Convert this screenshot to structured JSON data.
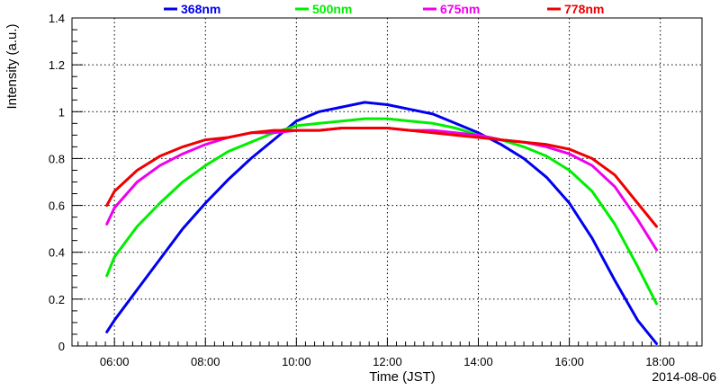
{
  "chart_data": {
    "type": "line",
    "xlabel": "Time (JST)",
    "ylabel": "Intensity (a.u.)",
    "date_label": "2014-08-06",
    "x_ticks": [
      "06:00",
      "08:00",
      "10:00",
      "12:00",
      "14:00",
      "16:00",
      "18:00"
    ],
    "y_ticks": [
      "0",
      "0.2",
      "0.4",
      "0.6",
      "0.8",
      "1",
      "1.2",
      "1.4"
    ],
    "xlim": [
      "05:04",
      "18:55"
    ],
    "ylim": [
      0,
      1.4
    ],
    "grid": true,
    "legend_position": "top",
    "x": [
      "05:50",
      "06:00",
      "06:30",
      "07:00",
      "07:30",
      "08:00",
      "08:30",
      "09:00",
      "09:30",
      "10:00",
      "10:30",
      "11:00",
      "11:30",
      "12:00",
      "12:30",
      "13:00",
      "13:30",
      "14:00",
      "14:30",
      "15:00",
      "15:30",
      "16:00",
      "16:30",
      "17:00",
      "17:30",
      "17:55"
    ],
    "series": [
      {
        "name": "368nm",
        "color": "#0000ee",
        "values": [
          0.06,
          0.11,
          0.24,
          0.37,
          0.5,
          0.61,
          0.71,
          0.8,
          0.88,
          0.96,
          1.0,
          1.02,
          1.04,
          1.03,
          1.01,
          0.99,
          0.95,
          0.91,
          0.86,
          0.8,
          0.72,
          0.61,
          0.46,
          0.28,
          0.11,
          0.01
        ]
      },
      {
        "name": "500nm",
        "color": "#00ee00",
        "values": [
          0.3,
          0.38,
          0.51,
          0.61,
          0.7,
          0.77,
          0.83,
          0.87,
          0.91,
          0.94,
          0.95,
          0.96,
          0.97,
          0.97,
          0.96,
          0.95,
          0.93,
          0.9,
          0.88,
          0.85,
          0.81,
          0.75,
          0.66,
          0.52,
          0.34,
          0.18
        ]
      },
      {
        "name": "675nm",
        "color": "#ee00ee",
        "values": [
          0.52,
          0.59,
          0.7,
          0.77,
          0.82,
          0.86,
          0.89,
          0.91,
          0.91,
          0.92,
          0.92,
          0.93,
          0.93,
          0.93,
          0.92,
          0.92,
          0.91,
          0.9,
          0.88,
          0.87,
          0.85,
          0.82,
          0.77,
          0.68,
          0.54,
          0.41
        ]
      },
      {
        "name": "778nm",
        "color": "#ee0000",
        "values": [
          0.6,
          0.66,
          0.75,
          0.81,
          0.85,
          0.88,
          0.89,
          0.91,
          0.92,
          0.92,
          0.92,
          0.93,
          0.93,
          0.93,
          0.92,
          0.91,
          0.9,
          0.89,
          0.88,
          0.87,
          0.86,
          0.84,
          0.8,
          0.73,
          0.61,
          0.51
        ]
      }
    ]
  }
}
